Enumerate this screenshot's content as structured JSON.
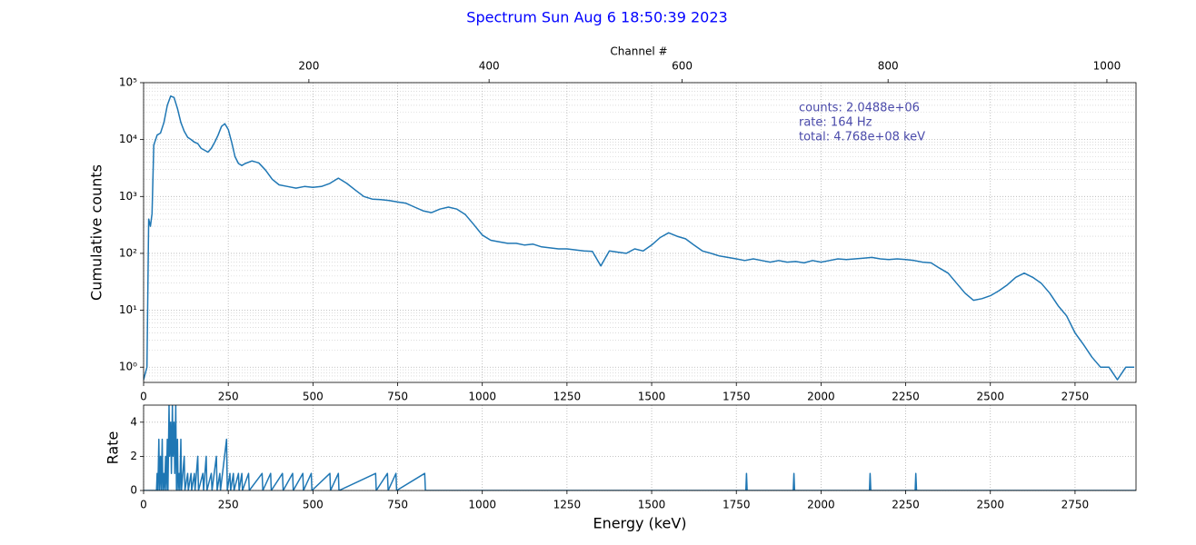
{
  "chart_data": [
    {
      "type": "line",
      "title": "Spectrum Sun Aug  6 18:50:39 2023",
      "annotations": [
        "counts: 2.0488e+06",
        "rate:   164 Hz",
        "total:  4.768e+08 keV"
      ],
      "ylabel": "Cumulative counts",
      "x2label": "Channel #",
      "x2ticks": [
        200,
        400,
        600,
        800,
        1000
      ],
      "channel_calibration": [
        -6,
        2.375,
        0.000475
      ],
      "xlim": [
        0,
        2930
      ],
      "xticks": [
        0,
        250,
        500,
        750,
        1000,
        1250,
        1500,
        1750,
        2000,
        2250,
        2500,
        2750
      ],
      "log_y": true,
      "ylim": [
        0.54,
        100000
      ],
      "yticks": [
        {
          "value": 1,
          "label": "10⁰"
        },
        {
          "value": 10,
          "label": "10¹"
        },
        {
          "value": 100,
          "label": "10²"
        },
        {
          "value": 1000,
          "label": "10³"
        },
        {
          "value": 10000,
          "label": "10⁴"
        },
        {
          "value": 100000,
          "label": "10⁵"
        }
      ],
      "grid": true,
      "color": "#1f77b4",
      "x": [
        0,
        10,
        15,
        20,
        25,
        30,
        40,
        50,
        60,
        70,
        80,
        90,
        100,
        110,
        120,
        130,
        140,
        150,
        160,
        170,
        180,
        190,
        200,
        210,
        220,
        230,
        240,
        250,
        260,
        270,
        280,
        290,
        300,
        320,
        340,
        360,
        380,
        400,
        425,
        450,
        475,
        500,
        525,
        550,
        575,
        600,
        625,
        650,
        675,
        700,
        725,
        750,
        775,
        800,
        825,
        850,
        875,
        900,
        925,
        950,
        975,
        1000,
        1025,
        1050,
        1075,
        1100,
        1125,
        1150,
        1175,
        1200,
        1225,
        1250,
        1275,
        1300,
        1325,
        1350,
        1375,
        1400,
        1425,
        1450,
        1475,
        1500,
        1525,
        1550,
        1575,
        1600,
        1625,
        1650,
        1675,
        1700,
        1725,
        1750,
        1775,
        1800,
        1825,
        1850,
        1875,
        1900,
        1925,
        1950,
        1975,
        2000,
        2025,
        2050,
        2075,
        2100,
        2125,
        2150,
        2175,
        2200,
        2225,
        2250,
        2275,
        2300,
        2325,
        2350,
        2375,
        2400,
        2425,
        2450,
        2475,
        2500,
        2525,
        2550,
        2575,
        2600,
        2625,
        2650,
        2675,
        2700,
        2725,
        2750,
        2775,
        2800,
        2825,
        2850,
        2875,
        2900,
        2925
      ],
      "values": [
        0.6,
        1,
        400,
        300,
        500,
        8000,
        12000,
        13000,
        20000,
        40000,
        58000,
        55000,
        35000,
        20000,
        14000,
        11000,
        10000,
        9000,
        8500,
        7000,
        6500,
        6000,
        7000,
        9000,
        12000,
        17000,
        19000,
        15000,
        9000,
        5000,
        3800,
        3500,
        3800,
        4200,
        3900,
        2900,
        2000,
        1600,
        1500,
        1400,
        1500,
        1450,
        1500,
        1700,
        2100,
        1700,
        1300,
        1000,
        900,
        880,
        850,
        800,
        760,
        650,
        560,
        520,
        600,
        650,
        600,
        480,
        320,
        210,
        170,
        160,
        150,
        150,
        140,
        145,
        130,
        125,
        120,
        120,
        115,
        110,
        108,
        60,
        110,
        105,
        100,
        120,
        110,
        140,
        190,
        230,
        200,
        180,
        140,
        110,
        100,
        90,
        85,
        80,
        75,
        80,
        75,
        70,
        75,
        70,
        72,
        68,
        75,
        70,
        75,
        80,
        78,
        80,
        82,
        85,
        80,
        78,
        80,
        78,
        75,
        70,
        68,
        55,
        45,
        30,
        20,
        15,
        16,
        18,
        22,
        28,
        38,
        45,
        38,
        30,
        20,
        12,
        8,
        4,
        2.5,
        1.5,
        1,
        1,
        0.6,
        1,
        1
      ]
    },
    {
      "type": "line",
      "xlabel": "Energy (keV)",
      "ylabel": "Rate",
      "xlim": [
        0,
        2930
      ],
      "xticks": [
        0,
        250,
        500,
        750,
        1000,
        1250,
        1500,
        1750,
        2000,
        2250,
        2500,
        2750
      ],
      "ylim": [
        0,
        5
      ],
      "yticks": [
        0,
        2,
        4
      ],
      "grid": true,
      "color": "#1f77b4",
      "x": [
        0,
        38,
        40,
        42,
        45,
        47,
        50,
        52,
        55,
        57,
        60,
        62,
        65,
        67,
        70,
        72,
        75,
        77,
        80,
        82,
        85,
        87,
        90,
        92,
        95,
        97,
        100,
        102,
        105,
        107,
        110,
        112,
        120,
        122,
        130,
        132,
        140,
        142,
        150,
        152,
        160,
        162,
        175,
        177,
        185,
        187,
        200,
        202,
        215,
        217,
        225,
        227,
        245,
        247,
        255,
        257,
        265,
        267,
        280,
        282,
        290,
        292,
        310,
        312,
        350,
        352,
        375,
        377,
        410,
        412,
        440,
        442,
        470,
        472,
        495,
        497,
        550,
        552,
        575,
        577,
        685,
        687,
        720,
        722,
        745,
        747,
        830,
        832,
        1778,
        1780,
        1782,
        1918,
        1920,
        1922,
        2143,
        2145,
        2147,
        2278,
        2280,
        2282,
        2930
      ],
      "values": [
        0,
        0,
        1,
        0,
        3,
        0,
        2,
        0,
        3,
        0,
        1,
        0,
        2,
        0,
        3,
        0,
        5,
        2,
        4,
        1,
        5,
        2,
        4,
        1,
        5,
        0,
        3,
        0,
        1,
        0,
        3,
        0,
        2,
        0,
        1,
        0,
        1,
        0,
        1,
        0,
        2,
        0,
        1,
        0,
        2,
        0,
        1,
        0,
        2,
        0,
        1,
        0,
        3,
        0,
        1,
        0,
        1,
        0,
        1,
        0,
        1,
        0,
        1,
        0,
        1,
        0,
        1,
        0,
        1,
        0,
        1,
        0,
        1,
        0,
        1,
        0,
        1,
        0,
        1,
        0,
        1,
        0,
        1,
        0,
        1,
        0,
        1,
        0,
        0,
        1,
        0,
        0,
        1,
        0,
        0,
        1,
        0,
        0,
        1,
        0,
        0
      ]
    }
  ]
}
